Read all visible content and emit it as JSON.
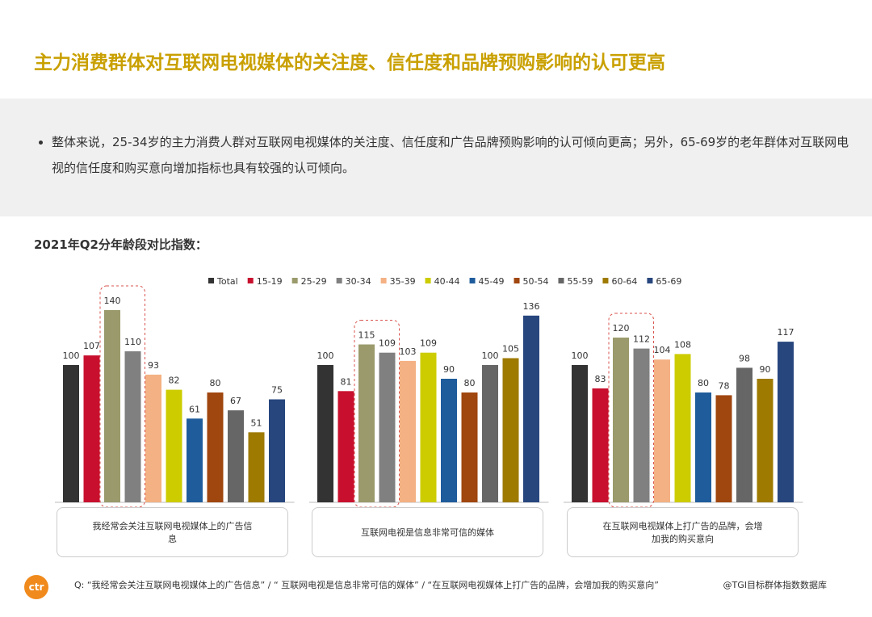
{
  "header": {
    "title": "主力消费群体对互联网电视媒体的关注度、信任度和品牌预购影响的认可更高"
  },
  "summary": {
    "bullet": "整体来说，25-34岁的主力消费人群对互联网电视媒体的关注度、信任度和广告品牌预购影响的认可倾向更高；另外，65-69岁的老年群体对互联网电视的信任度和购买意向增加指标也具有较强的认可倾向。"
  },
  "chart_data": {
    "type": "bar",
    "subtitle": "2021年Q2分年龄段对比指数：",
    "categories": [
      "我经常会关注互联网电视媒体上的广告信息",
      "互联网电视是信息非常可信的媒体",
      "在互联网电视媒体上打广告的品牌，会增加我的购买意向"
    ],
    "series": [
      {
        "name": "Total",
        "color": "#333333",
        "values": [
          100,
          100,
          100
        ]
      },
      {
        "name": "15-19",
        "color": "#c8102e",
        "values": [
          107,
          81,
          83
        ]
      },
      {
        "name": "25-29",
        "color": "#9a9a6c",
        "values": [
          140,
          115,
          120
        ]
      },
      {
        "name": "30-34",
        "color": "#808080",
        "values": [
          110,
          109,
          112
        ]
      },
      {
        "name": "35-39",
        "color": "#f4b183",
        "values": [
          93,
          103,
          104
        ]
      },
      {
        "name": "40-44",
        "color": "#cccc00",
        "values": [
          82,
          109,
          108
        ]
      },
      {
        "name": "45-49",
        "color": "#1f5c9c",
        "values": [
          61,
          90,
          80
        ]
      },
      {
        "name": "50-54",
        "color": "#a0460f",
        "values": [
          80,
          80,
          78
        ]
      },
      {
        "name": "55-59",
        "color": "#666666",
        "values": [
          67,
          100,
          98
        ]
      },
      {
        "name": "60-64",
        "color": "#9e7a00",
        "values": [
          51,
          105,
          90
        ]
      },
      {
        "name": "65-69",
        "color": "#27467e",
        "values": [
          75,
          136,
          117
        ]
      }
    ],
    "footnote": "Q: “我经常会关注互联网电视媒体上的广告信息” / “ 互联网电视是信息非常可信的媒体” / “在互联网电视媒体上打广告的品牌，会增加我的购买意向”",
    "source": "@TGI目标群体指数数据库"
  },
  "logo": "ctr"
}
